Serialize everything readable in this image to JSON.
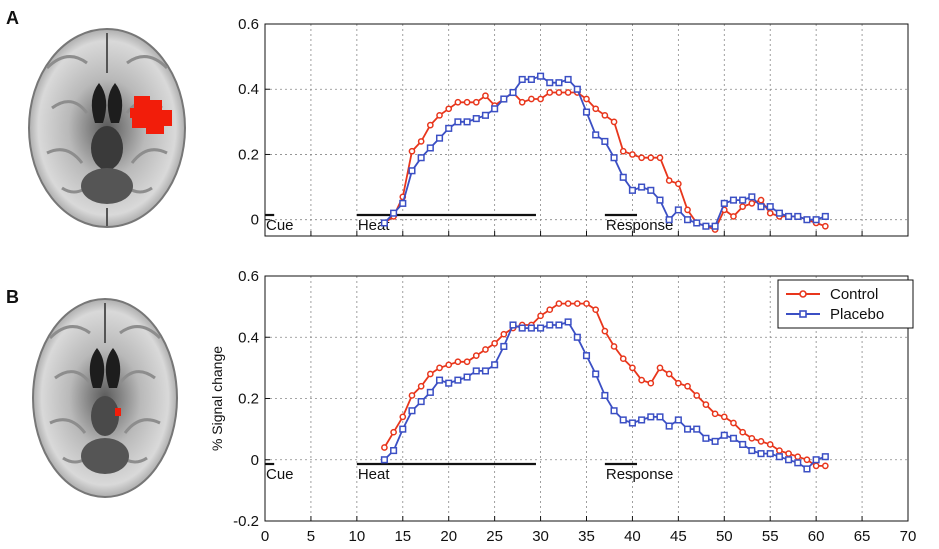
{
  "panels": {
    "a": {
      "letter": "A"
    },
    "b": {
      "letter": "B"
    }
  },
  "colors": {
    "control": "#e8361c",
    "placebo": "#3b4fc4",
    "axis": "#111111",
    "grid": "#888888",
    "roi": "#f21d0a"
  },
  "icons": {
    "brain_a": "brain-axial-slice-icon",
    "brain_b": "brain-axial-slice-icon"
  },
  "chart_data": [
    {
      "type": "line",
      "panel": "A",
      "ylabel": "",
      "xlabel": "",
      "xlim": [
        0,
        70
      ],
      "ylim": [
        -0.05,
        0.6
      ],
      "y_ticks": [
        "0.6",
        "0.4",
        "0.2",
        "0"
      ],
      "y_tick_values": [
        0.6,
        0.4,
        0.2,
        0
      ],
      "x_tick_values": [
        0,
        5,
        10,
        15,
        20,
        25,
        30,
        35,
        40,
        45,
        50,
        55,
        60,
        65,
        70
      ],
      "x_tick_labels": [],
      "grid": true,
      "events": [
        {
          "label": "Cue",
          "start": 0,
          "end": 1
        },
        {
          "label": "Heat",
          "start": 10,
          "end": 29.5
        },
        {
          "label": "Response",
          "start": 37,
          "end": 40.5
        }
      ],
      "series": [
        {
          "name": "Control",
          "marker": "circle",
          "x": [
            13,
            14,
            15,
            16,
            17,
            18,
            19,
            20,
            21,
            22,
            23,
            24,
            25,
            26,
            27,
            28,
            29,
            30,
            31,
            32,
            33,
            34,
            35,
            36,
            37,
            38,
            39,
            40,
            41,
            42,
            43,
            44,
            45,
            46,
            47,
            48,
            49,
            50,
            51,
            52,
            53,
            54,
            55,
            56,
            57,
            58,
            59,
            60,
            61
          ],
          "values": [
            -0.01,
            0.01,
            0.07,
            0.21,
            0.24,
            0.29,
            0.32,
            0.34,
            0.36,
            0.36,
            0.36,
            0.38,
            0.35,
            0.37,
            0.39,
            0.36,
            0.37,
            0.37,
            0.39,
            0.39,
            0.39,
            0.39,
            0.37,
            0.34,
            0.32,
            0.3,
            0.21,
            0.2,
            0.19,
            0.19,
            0.19,
            0.12,
            0.11,
            0.03,
            -0.01,
            -0.02,
            -0.03,
            0.03,
            0.01,
            0.04,
            0.05,
            0.06,
            0.02,
            0.01,
            0.01,
            0.01,
            0.0,
            -0.01,
            -0.02
          ]
        },
        {
          "name": "Placebo",
          "marker": "square",
          "x": [
            13,
            14,
            15,
            16,
            17,
            18,
            19,
            20,
            21,
            22,
            23,
            24,
            25,
            26,
            27,
            28,
            29,
            30,
            31,
            32,
            33,
            34,
            35,
            36,
            37,
            38,
            39,
            40,
            41,
            42,
            43,
            44,
            45,
            46,
            47,
            48,
            49,
            50,
            51,
            52,
            53,
            54,
            55,
            56,
            57,
            58,
            59,
            60,
            61
          ],
          "values": [
            -0.01,
            0.02,
            0.05,
            0.15,
            0.19,
            0.22,
            0.25,
            0.28,
            0.3,
            0.3,
            0.31,
            0.32,
            0.34,
            0.37,
            0.39,
            0.43,
            0.43,
            0.44,
            0.42,
            0.42,
            0.43,
            0.4,
            0.33,
            0.26,
            0.24,
            0.19,
            0.13,
            0.09,
            0.1,
            0.09,
            0.06,
            0.0,
            0.03,
            0.0,
            -0.01,
            -0.02,
            -0.02,
            0.05,
            0.06,
            0.06,
            0.07,
            0.04,
            0.04,
            0.02,
            0.01,
            0.01,
            0.0,
            0.0,
            0.01
          ]
        }
      ]
    },
    {
      "type": "line",
      "panel": "B",
      "ylabel": "% Signal change",
      "xlabel": "",
      "xlim": [
        0,
        70
      ],
      "ylim": [
        -0.2,
        0.6
      ],
      "y_ticks": [
        "0.6",
        "0.4",
        "0.2",
        "0",
        "-0.2"
      ],
      "y_tick_values": [
        0.6,
        0.4,
        0.2,
        0,
        -0.2
      ],
      "x_tick_values": [
        0,
        5,
        10,
        15,
        20,
        25,
        30,
        35,
        40,
        45,
        50,
        55,
        60,
        65,
        70
      ],
      "x_tick_labels": [
        "0",
        "5",
        "10",
        "15",
        "20",
        "25",
        "30",
        "35",
        "40",
        "45",
        "50",
        "55",
        "60",
        "65",
        "70"
      ],
      "grid": true,
      "legend": {
        "position": "top-right",
        "entries": [
          "Control",
          "Placebo"
        ]
      },
      "events": [
        {
          "label": "Cue",
          "start": 0,
          "end": 1
        },
        {
          "label": "Heat",
          "start": 10,
          "end": 29.5
        },
        {
          "label": "Response",
          "start": 37,
          "end": 40.5
        }
      ],
      "series": [
        {
          "name": "Control",
          "marker": "circle",
          "x": [
            13,
            14,
            15,
            16,
            17,
            18,
            19,
            20,
            21,
            22,
            23,
            24,
            25,
            26,
            27,
            28,
            29,
            30,
            31,
            32,
            33,
            34,
            35,
            36,
            37,
            38,
            39,
            40,
            41,
            42,
            43,
            44,
            45,
            46,
            47,
            48,
            49,
            50,
            51,
            52,
            53,
            54,
            55,
            56,
            57,
            58,
            59,
            60,
            61
          ],
          "values": [
            0.04,
            0.09,
            0.14,
            0.21,
            0.24,
            0.28,
            0.3,
            0.31,
            0.32,
            0.32,
            0.34,
            0.36,
            0.38,
            0.41,
            0.43,
            0.44,
            0.44,
            0.47,
            0.49,
            0.51,
            0.51,
            0.51,
            0.51,
            0.49,
            0.42,
            0.37,
            0.33,
            0.3,
            0.26,
            0.25,
            0.3,
            0.28,
            0.25,
            0.24,
            0.21,
            0.18,
            0.15,
            0.14,
            0.12,
            0.09,
            0.07,
            0.06,
            0.05,
            0.03,
            0.02,
            0.01,
            0.0,
            -0.02,
            -0.02
          ]
        },
        {
          "name": "Placebo",
          "marker": "square",
          "x": [
            13,
            14,
            15,
            16,
            17,
            18,
            19,
            20,
            21,
            22,
            23,
            24,
            25,
            26,
            27,
            28,
            29,
            30,
            31,
            32,
            33,
            34,
            35,
            36,
            37,
            38,
            39,
            40,
            41,
            42,
            43,
            44,
            45,
            46,
            47,
            48,
            49,
            50,
            51,
            52,
            53,
            54,
            55,
            56,
            57,
            58,
            59,
            60,
            61
          ],
          "values": [
            0.0,
            0.03,
            0.1,
            0.16,
            0.19,
            0.22,
            0.26,
            0.25,
            0.26,
            0.27,
            0.29,
            0.29,
            0.31,
            0.37,
            0.44,
            0.43,
            0.43,
            0.43,
            0.44,
            0.44,
            0.45,
            0.4,
            0.34,
            0.28,
            0.21,
            0.16,
            0.13,
            0.12,
            0.13,
            0.14,
            0.14,
            0.11,
            0.13,
            0.1,
            0.1,
            0.07,
            0.06,
            0.08,
            0.07,
            0.05,
            0.03,
            0.02,
            0.02,
            0.01,
            0.0,
            -0.01,
            -0.03,
            0.0,
            0.01
          ]
        }
      ]
    }
  ]
}
